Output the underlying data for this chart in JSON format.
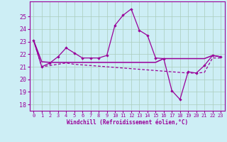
{
  "xlabel": "Windchill (Refroidissement éolien,°C)",
  "bg_color": "#cdeef5",
  "grid_color": "#aaccbb",
  "line_color": "#990099",
  "x": [
    0,
    1,
    2,
    3,
    4,
    5,
    6,
    7,
    8,
    9,
    10,
    11,
    12,
    13,
    14,
    15,
    16,
    17,
    18,
    19,
    20,
    21,
    22,
    23
  ],
  "y_main": [
    23.1,
    21.0,
    21.3,
    21.8,
    22.5,
    22.1,
    21.7,
    21.7,
    21.7,
    21.9,
    24.3,
    25.1,
    25.6,
    23.9,
    23.5,
    21.7,
    21.65,
    19.1,
    18.4,
    20.6,
    20.5,
    21.1,
    21.9,
    21.8
  ],
  "y_avg": [
    23.1,
    21.4,
    21.35,
    21.35,
    21.35,
    21.35,
    21.35,
    21.35,
    21.35,
    21.35,
    21.35,
    21.35,
    21.35,
    21.35,
    21.35,
    21.35,
    21.65,
    21.65,
    21.65,
    21.65,
    21.65,
    21.65,
    21.9,
    21.8
  ],
  "y_line3": [
    23.1,
    21.0,
    21.1,
    21.2,
    21.3,
    21.2,
    21.15,
    21.1,
    21.05,
    21.0,
    20.95,
    20.9,
    20.85,
    20.8,
    20.75,
    20.7,
    20.65,
    20.6,
    20.55,
    20.5,
    20.5,
    20.55,
    21.7,
    21.7
  ],
  "ylim": [
    17.5,
    26.2
  ],
  "yticks": [
    18,
    19,
    20,
    21,
    22,
    23,
    24,
    25
  ],
  "xticks": [
    0,
    1,
    2,
    3,
    4,
    5,
    6,
    7,
    8,
    9,
    10,
    11,
    12,
    13,
    14,
    15,
    16,
    17,
    18,
    19,
    20,
    21,
    22,
    23
  ]
}
